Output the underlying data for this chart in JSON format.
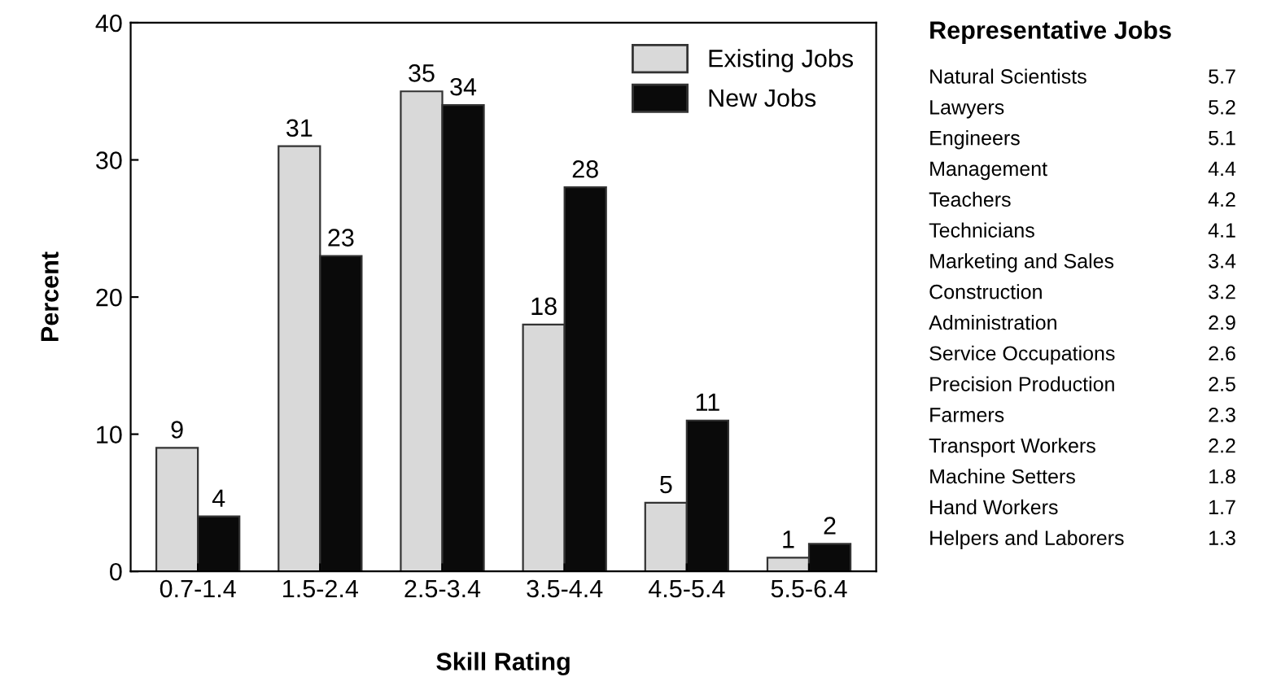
{
  "chart_data": [
    {
      "type": "bar",
      "xlabel": "Skill Rating",
      "ylabel": "Percent",
      "categories": [
        "0.7-1.4",
        "1.5-2.4",
        "2.5-3.4",
        "3.5-4.4",
        "4.5-5.4",
        "5.5-6.4"
      ],
      "series": [
        {
          "name": "Existing Jobs",
          "color": "#d9d9d9",
          "values": [
            9,
            31,
            35,
            18,
            5,
            1
          ]
        },
        {
          "name": "New Jobs",
          "color": "#0a0a0a",
          "values": [
            4,
            23,
            34,
            28,
            11,
            2
          ]
        }
      ],
      "ylim": [
        0,
        40
      ],
      "yticks": [
        0,
        10,
        20,
        30,
        40
      ],
      "grid": false,
      "legend": "top right",
      "data_labels": true
    },
    {
      "type": "other",
      "title": "Representative Jobs",
      "categories": [
        "Natural Scientists",
        "Lawyers",
        "Engineers",
        "Management",
        "Teachers",
        "Technicians",
        "Marketing and Sales",
        "Construction",
        "Administration",
        "Service Occupations",
        "Precision Production",
        "Farmers",
        "Transport Workers",
        "Machine Setters",
        "Hand Workers",
        "Helpers and Laborers"
      ],
      "values": [
        5.7,
        5.2,
        5.1,
        4.4,
        4.2,
        4.1,
        3.4,
        3.2,
        2.9,
        2.6,
        2.5,
        2.3,
        2.2,
        1.8,
        1.7,
        1.3
      ],
      "data_labels": true
    }
  ]
}
